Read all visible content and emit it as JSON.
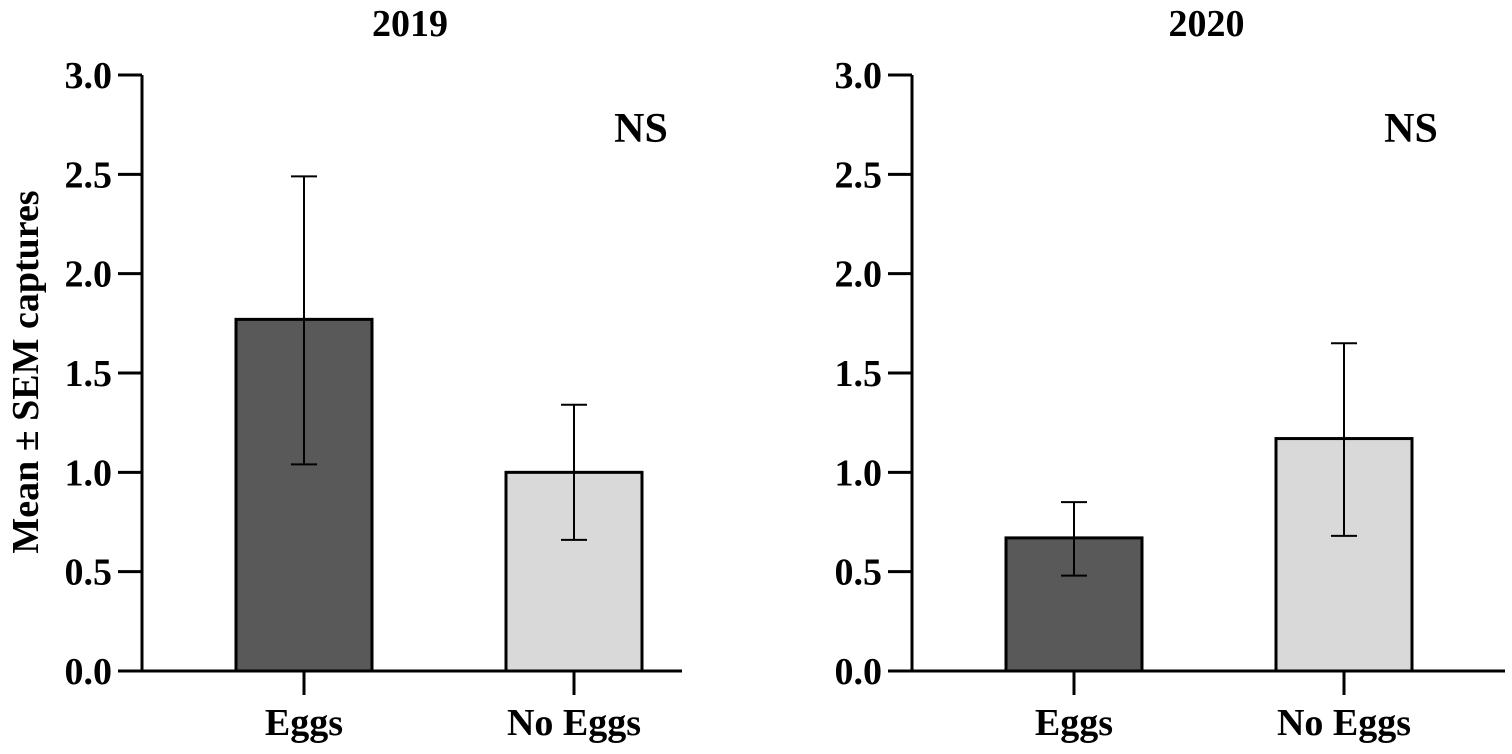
{
  "figure": {
    "ylabel": "Mean ± SEM captures"
  },
  "colors": {
    "eggs": "#595959",
    "no_eggs": "#d9d9d9",
    "axis": "#000000"
  },
  "chart_data": [
    {
      "type": "bar",
      "title": "2019",
      "categories": [
        "Eggs",
        "No Eggs"
      ],
      "values": [
        1.77,
        1.0
      ],
      "errors": [
        [
          1.04,
          2.49
        ],
        [
          0.66,
          1.34
        ]
      ],
      "colors": [
        "#595959",
        "#d9d9d9"
      ],
      "ylim": [
        0,
        3.0
      ],
      "yticks": [
        0.0,
        0.5,
        1.0,
        1.5,
        2.0,
        2.5,
        3.0
      ],
      "ytick_labels": [
        "0.0",
        "0.5",
        "1.0",
        "1.5",
        "2.0",
        "2.5",
        "3.0"
      ],
      "ylabel": "Mean ± SEM captures",
      "xlabel": "",
      "annotation": "NS",
      "grid": false
    },
    {
      "type": "bar",
      "title": "2020",
      "categories": [
        "Eggs",
        "No Eggs"
      ],
      "values": [
        0.67,
        1.17
      ],
      "errors": [
        [
          0.48,
          0.85
        ],
        [
          0.68,
          1.65
        ]
      ],
      "colors": [
        "#595959",
        "#d9d9d9"
      ],
      "ylim": [
        0,
        3.0
      ],
      "yticks": [
        0.0,
        0.5,
        1.0,
        1.5,
        2.0,
        2.5,
        3.0
      ],
      "ytick_labels": [
        "0.0",
        "0.5",
        "1.0",
        "1.5",
        "2.0",
        "2.5",
        "3.0"
      ],
      "ylabel": "",
      "xlabel": "",
      "annotation": "NS",
      "grid": false
    }
  ]
}
